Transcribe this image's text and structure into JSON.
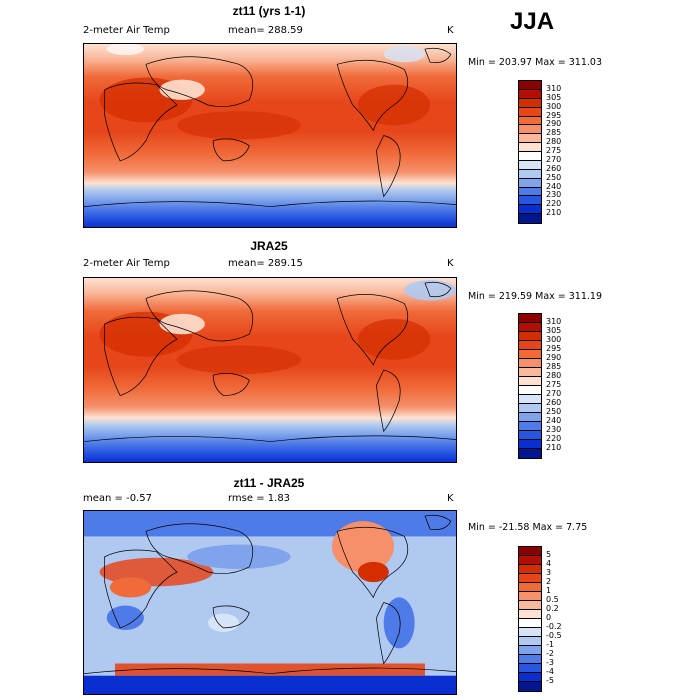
{
  "season": "JJA",
  "panels": [
    {
      "id": "model",
      "title": "zt11 (yrs 1-1)",
      "left": "2-meter Air Temp",
      "center": "mean= 288.59",
      "units": "K",
      "minmax": "Min = 203.97 Max = 311.03",
      "field": "temp",
      "colorbar": {
        "labels": [
          "310",
          "305",
          "300",
          "295",
          "290",
          "285",
          "280",
          "275",
          "270",
          "260",
          "250",
          "240",
          "230",
          "220",
          "210"
        ],
        "colors": [
          "#8b0000",
          "#b30f00",
          "#d42d00",
          "#e6461a",
          "#f06a3a",
          "#f5906a",
          "#f9b89a",
          "#fde2d2",
          "#ffffff",
          "#d6e4f7",
          "#b0c9f0",
          "#7fa4ec",
          "#4f7be8",
          "#2756e0",
          "#0a2fd0",
          "#00168f"
        ]
      }
    },
    {
      "id": "obs",
      "title": "JRA25",
      "left": "2-meter Air Temp",
      "center": "mean= 289.15",
      "units": "K",
      "minmax": "Min = 219.59 Max = 311.19",
      "field": "temp",
      "colorbar": {
        "labels": [
          "310",
          "305",
          "300",
          "295",
          "290",
          "285",
          "280",
          "275",
          "270",
          "260",
          "250",
          "240",
          "230",
          "220",
          "210"
        ],
        "colors": [
          "#8b0000",
          "#b30f00",
          "#d42d00",
          "#e6461a",
          "#f06a3a",
          "#f5906a",
          "#f9b89a",
          "#fde2d2",
          "#ffffff",
          "#d6e4f7",
          "#b0c9f0",
          "#7fa4ec",
          "#4f7be8",
          "#2756e0",
          "#0a2fd0",
          "#00168f"
        ]
      }
    },
    {
      "id": "diff",
      "title": "zt11 - JRA25",
      "left": "mean =   -0.57",
      "center": "rmse =    1.83",
      "units": "K",
      "minmax": "Min = -21.58 Max =    7.75",
      "field": "diff",
      "colorbar": {
        "labels": [
          "5",
          "4",
          "3",
          "2",
          "1",
          "0.5",
          "0.2",
          "0",
          "-0.2",
          "-0.5",
          "-1",
          "-2",
          "-3",
          "-4",
          "-5"
        ],
        "colors": [
          "#8b0000",
          "#b30f00",
          "#d42d00",
          "#e6461a",
          "#f06a3a",
          "#f5906a",
          "#f9b89a",
          "#fde2d2",
          "#ffffff",
          "#d6e4f7",
          "#b0c9f0",
          "#7fa4ec",
          "#4f7be8",
          "#2756e0",
          "#0a2fd0",
          "#00168f"
        ]
      }
    }
  ]
}
